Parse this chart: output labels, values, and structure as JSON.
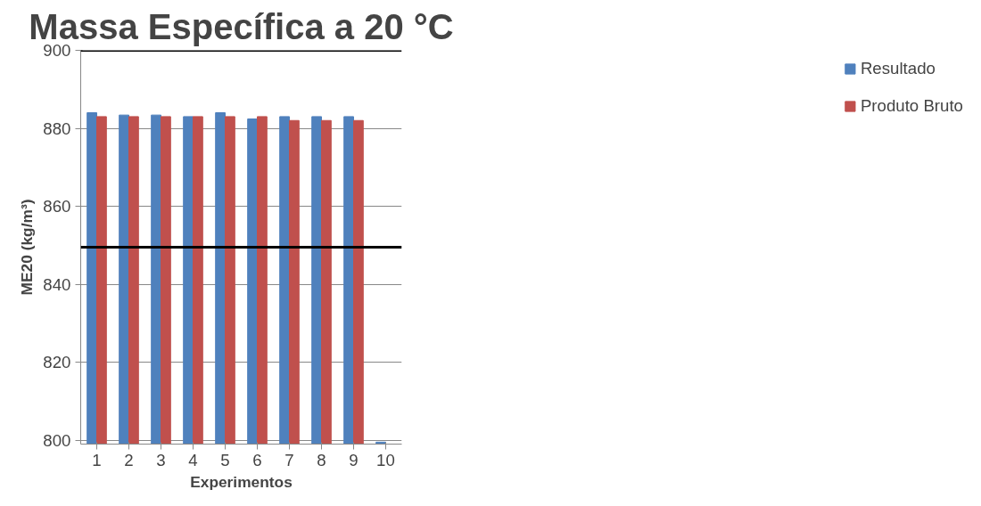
{
  "chart_data": {
    "type": "bar",
    "title": "Massa Específica a 20 °C",
    "xlabel": "Experimentos",
    "ylabel": "ME20 (kg/m³)",
    "categories": [
      "1",
      "2",
      "3",
      "4",
      "5",
      "6",
      "7",
      "8",
      "9",
      "10"
    ],
    "series": [
      {
        "name": "Resultado",
        "color": "#4f81bd",
        "values": [
          884,
          883.4,
          883.4,
          883,
          884,
          882.4,
          883,
          883,
          883,
          799.5
        ]
      },
      {
        "name": "Produto Bruto",
        "color": "#c0504d",
        "values": [
          883,
          883,
          883,
          883,
          883,
          883,
          882,
          882,
          882,
          null
        ]
      }
    ],
    "ylim": [
      799,
      900
    ],
    "yticks": [
      800,
      820,
      840,
      860,
      880,
      900
    ],
    "grid": "y",
    "legend": "right",
    "ref_lines": [
      {
        "axis": "y",
        "value": 900,
        "color": "#000000"
      },
      {
        "axis": "y",
        "value": 849.5,
        "color": "#000000"
      }
    ]
  }
}
